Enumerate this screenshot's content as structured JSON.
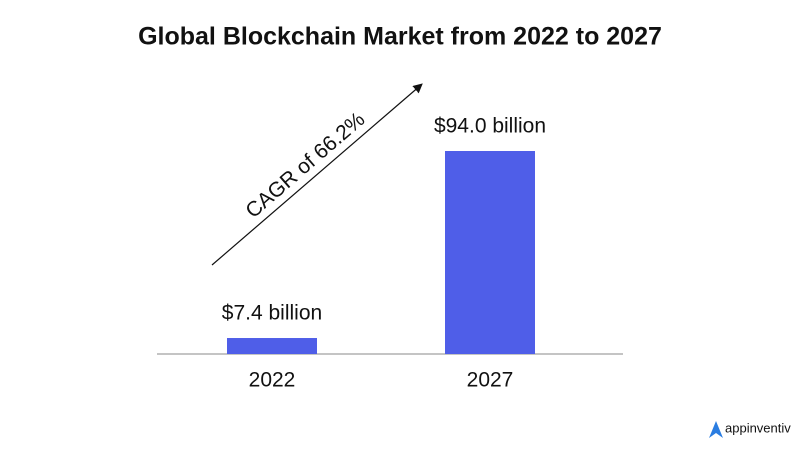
{
  "chart_data": {
    "type": "bar",
    "title": "Global Blockchain Market from 2022 to 2027",
    "categories": [
      "2022",
      "2027"
    ],
    "values": [
      7.4,
      94.0
    ],
    "value_labels": [
      "$7.4 billion",
      "$94.0 billion"
    ],
    "color": "#4f5ee8",
    "annotation": "CAGR of 66.2%",
    "logo": "appinventiv"
  }
}
